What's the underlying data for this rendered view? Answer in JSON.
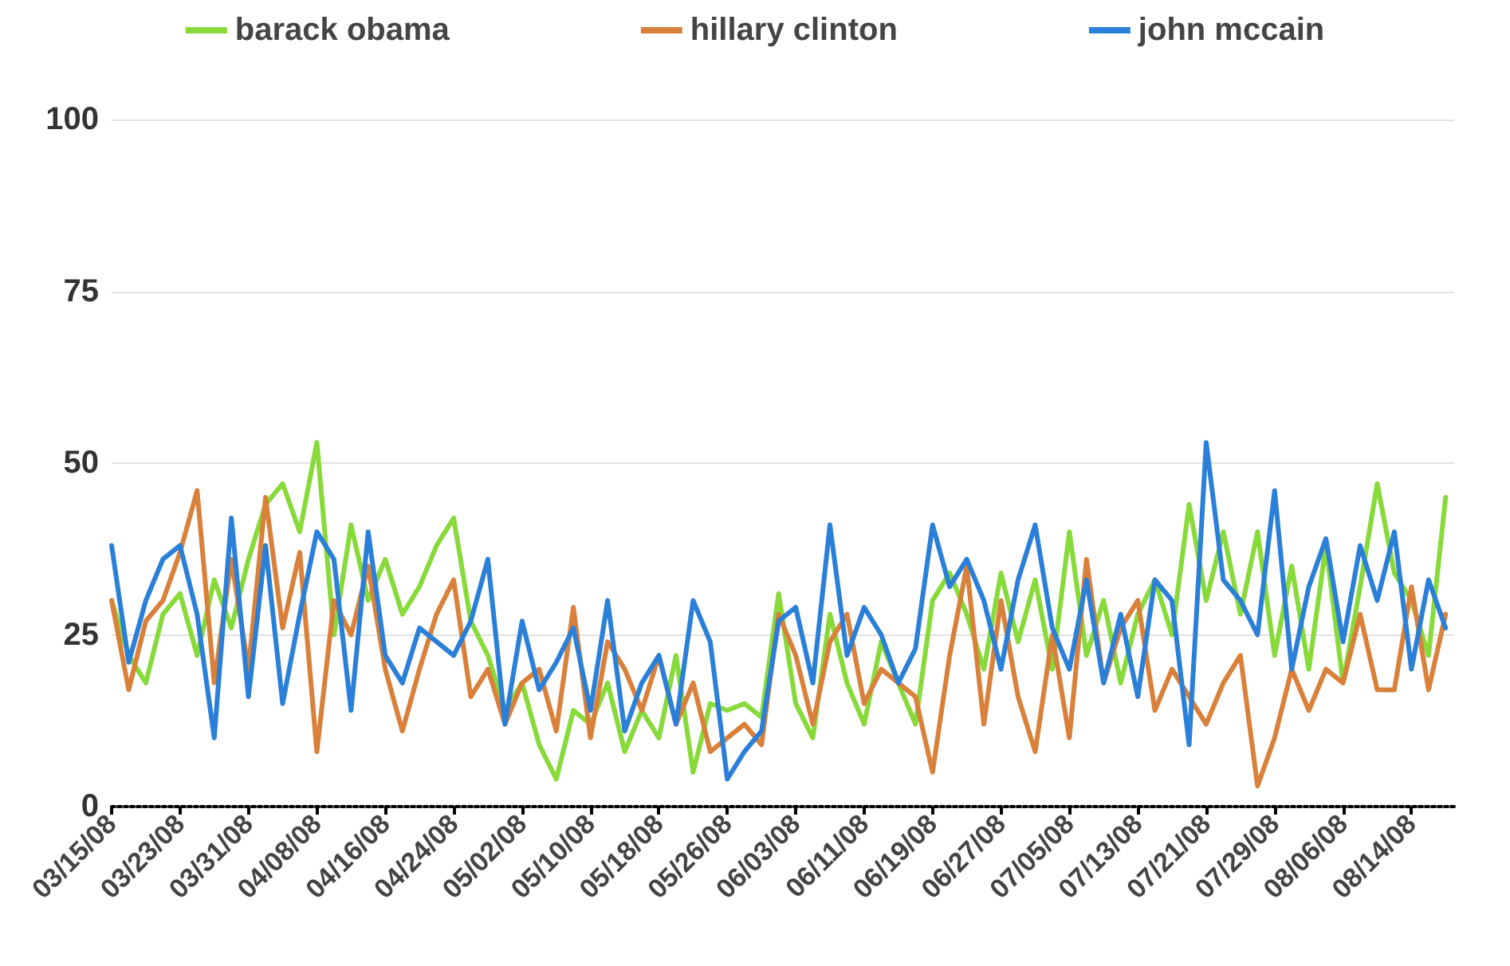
{
  "chart_data": {
    "type": "line",
    "legend": "top",
    "grid": "y",
    "marker": "none",
    "line_style": "solid",
    "x": [
      "--03-15",
      "--03-17",
      "--03-19",
      "--03-21",
      "--03-23",
      "--03-25",
      "--03-27",
      "--03-29",
      "--03-31",
      "--04-02",
      "--04-04",
      "--04-06",
      "--04-08",
      "--04-10",
      "--04-12",
      "--04-14",
      "--04-16",
      "--04-18",
      "--04-20",
      "--04-22",
      "--04-24",
      "--04-26",
      "--04-28",
      "--04-30",
      "--05-02",
      "--05-04",
      "--05-06",
      "--05-08",
      "--05-10",
      "--05-12",
      "--05-14",
      "--05-16",
      "--05-18",
      "--05-20",
      "--05-22",
      "--05-24",
      "--05-26",
      "--05-28",
      "--05-30",
      "--06-01",
      "--06-03",
      "--06-05",
      "--06-07",
      "--06-09",
      "--06-11",
      "--06-13",
      "--06-15",
      "--06-17",
      "--06-19",
      "--06-21",
      "--06-23",
      "--06-25",
      "--06-27",
      "--06-29",
      "--07-01",
      "--07-03",
      "--07-05",
      "--07-07",
      "--07-09",
      "--07-11",
      "--07-13",
      "--07-15",
      "--07-17",
      "--07-19",
      "--07-21",
      "--07-23",
      "--07-25",
      "--07-27",
      "--07-29",
      "--07-31",
      "--08-02",
      "--08-04",
      "--08-06",
      "--08-08",
      "--08-10",
      "--08-12",
      "--08-14",
      "--08-16",
      "--08-18"
    ],
    "series": [
      {
        "name": "barack obama",
        "color": "#88d93a",
        "values": [
          30,
          22,
          18,
          28,
          31,
          22,
          33,
          26,
          36,
          44,
          47,
          40,
          53,
          25,
          41,
          30,
          36,
          28,
          32,
          38,
          42,
          27,
          22,
          14,
          18,
          9,
          4,
          14,
          12,
          18,
          8,
          14,
          10,
          22,
          5,
          15,
          14,
          15,
          13,
          31,
          15,
          10,
          28,
          18,
          12,
          24,
          18,
          12,
          30,
          34,
          28,
          20,
          34,
          24,
          33,
          20,
          40,
          22,
          30,
          18,
          28,
          33,
          25,
          44,
          30,
          40,
          28,
          40,
          22,
          35,
          20,
          38,
          18,
          32,
          47,
          34,
          30,
          22,
          45
        ]
      },
      {
        "name": "hillary clinton",
        "color": "#d9803a",
        "values": [
          30,
          17,
          27,
          30,
          37,
          46,
          18,
          36,
          20,
          45,
          26,
          37,
          8,
          30,
          25,
          35,
          20,
          11,
          20,
          28,
          33,
          16,
          20,
          12,
          18,
          20,
          11,
          29,
          10,
          24,
          20,
          14,
          22,
          12,
          18,
          8,
          10,
          12,
          9,
          28,
          22,
          12,
          24,
          28,
          15,
          20,
          18,
          16,
          5,
          22,
          35,
          12,
          30,
          16,
          8,
          25,
          10,
          36,
          18,
          26,
          30,
          14,
          20,
          16,
          12,
          18,
          22,
          3,
          10,
          20,
          14,
          20,
          18,
          28,
          17,
          17,
          32,
          17,
          28
        ]
      },
      {
        "name": "john mccain",
        "color": "#2a7fd8",
        "values": [
          38,
          21,
          30,
          36,
          38,
          28,
          10,
          42,
          16,
          38,
          15,
          28,
          40,
          36,
          14,
          40,
          22,
          18,
          26,
          24,
          22,
          27,
          36,
          12,
          27,
          17,
          21,
          26,
          14,
          30,
          11,
          18,
          22,
          12,
          30,
          24,
          4,
          8,
          11,
          27,
          29,
          18,
          41,
          22,
          29,
          25,
          18,
          23,
          41,
          32,
          36,
          30,
          20,
          33,
          41,
          26,
          20,
          33,
          18,
          28,
          16,
          33,
          30,
          9,
          53,
          33,
          30,
          25,
          46,
          20,
          32,
          39,
          24,
          38,
          30,
          40,
          20,
          33,
          26
        ]
      }
    ],
    "xlim": [
      "--03-15",
      "--08-19"
    ],
    "xticks": [
      {
        "value": "--03-15",
        "label": "03/15/08"
      },
      {
        "value": "--03-23",
        "label": "03/23/08"
      },
      {
        "value": "--03-31",
        "label": "03/31/08"
      },
      {
        "value": "--04-08",
        "label": "04/08/08"
      },
      {
        "value": "--04-16",
        "label": "04/16/08"
      },
      {
        "value": "--04-24",
        "label": "04/24/08"
      },
      {
        "value": "--05-02",
        "label": "05/02/08"
      },
      {
        "value": "--05-10",
        "label": "05/10/08"
      },
      {
        "value": "--05-18",
        "label": "05/18/08"
      },
      {
        "value": "--05-26",
        "label": "05/26/08"
      },
      {
        "value": "--06-03",
        "label": "06/03/08"
      },
      {
        "value": "--06-11",
        "label": "06/11/08"
      },
      {
        "value": "--06-19",
        "label": "06/19/08"
      },
      {
        "value": "--06-27",
        "label": "06/27/08"
      },
      {
        "value": "--07-05",
        "label": "07/05/08"
      },
      {
        "value": "--07-13",
        "label": "07/13/08"
      },
      {
        "value": "--07-21",
        "label": "07/21/08"
      },
      {
        "value": "--07-29",
        "label": "07/29/08"
      },
      {
        "value": "--08-06",
        "label": "08/06/08"
      },
      {
        "value": "--08-14",
        "label": "08/14/08"
      }
    ],
    "ylim": [
      0,
      100
    ],
    "yticks": [
      0,
      25,
      50,
      75,
      100
    ]
  }
}
